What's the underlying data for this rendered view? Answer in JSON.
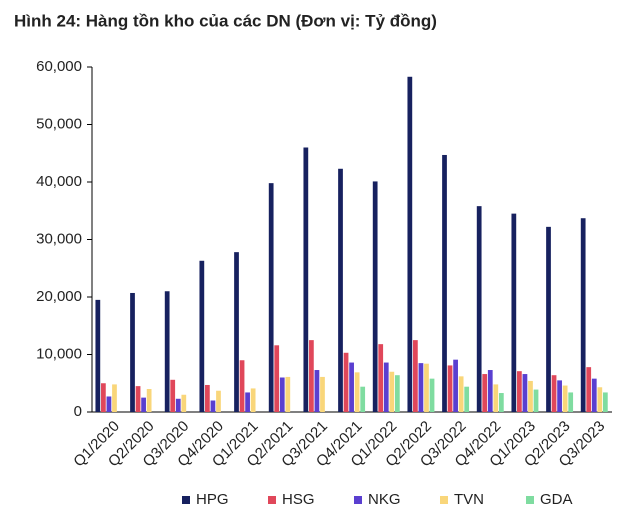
{
  "chart_data": {
    "type": "bar",
    "title": "Hình 24: Hàng tồn kho của các DN (Đơn vị: Tỷ đồng)",
    "categories": [
      "Q1/2020",
      "Q2/2020",
      "Q3/2020",
      "Q4/2020",
      "Q1/2021",
      "Q2/2021",
      "Q3/2021",
      "Q4/2021",
      "Q1/2022",
      "Q2/2022",
      "Q3/2022",
      "Q4/2022",
      "Q1/2023",
      "Q2/2023",
      "Q3/2023"
    ],
    "series": [
      {
        "name": "HPG",
        "color": "#17215f",
        "values": [
          19500,
          20700,
          21000,
          26300,
          27800,
          39800,
          46000,
          42300,
          40100,
          58300,
          44700,
          35800,
          34500,
          32200,
          33700
        ]
      },
      {
        "name": "HSG",
        "color": "#e0475a",
        "values": [
          5000,
          4500,
          5600,
          4700,
          9000,
          11600,
          12500,
          10300,
          11800,
          12500,
          8100,
          6600,
          7100,
          6400,
          7800
        ]
      },
      {
        "name": "NKG",
        "color": "#5a3fd0",
        "values": [
          2700,
          2500,
          2300,
          2000,
          3400,
          6000,
          7300,
          8600,
          8600,
          8500,
          9100,
          7300,
          6600,
          5500,
          5800
        ]
      },
      {
        "name": "TVN",
        "color": "#f9d67a",
        "values": [
          4800,
          4000,
          3000,
          3700,
          4100,
          6100,
          6100,
          6900,
          7000,
          8400,
          6200,
          4800,
          5400,
          4600,
          4300
        ]
      },
      {
        "name": "GDA",
        "color": "#7fdca0",
        "values": [
          null,
          null,
          null,
          null,
          null,
          null,
          null,
          4400,
          6400,
          5800,
          4400,
          3300,
          3900,
          3400,
          3400
        ]
      }
    ],
    "ylim": [
      0,
      60000
    ],
    "yticks": [
      0,
      {
        "value": 10000,
        "label": "10,000"
      },
      {
        "value": 20000,
        "label": "20,000"
      },
      {
        "value": 30000,
        "label": "30,000"
      },
      {
        "value": 40000,
        "label": "40,000"
      },
      {
        "value": 50000,
        "label": "50,000"
      },
      {
        "value": 60000,
        "label": "60,000"
      }
    ],
    "legend": "bottom"
  }
}
